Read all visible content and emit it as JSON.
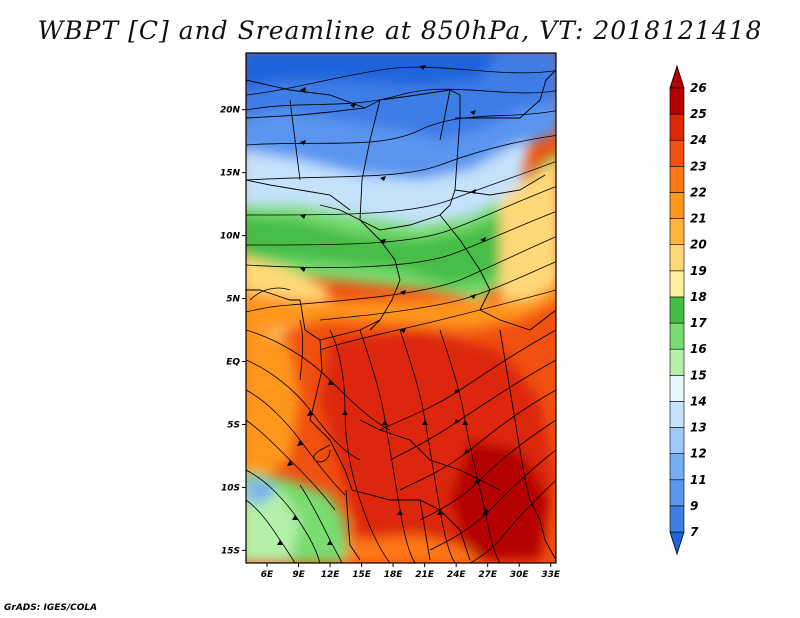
{
  "title": "WBPT [C] and Sreamline at 850hPa, VT: 2018121418",
  "map": {
    "lat_labels": [
      "20N",
      "15N",
      "10N",
      "5N",
      "EQ",
      "5S",
      "10S",
      "15S"
    ],
    "lat_values": [
      20,
      15,
      10,
      5,
      0,
      -5,
      -10,
      -15
    ],
    "lon_labels": [
      "6E",
      "9E",
      "12E",
      "15E",
      "18E",
      "21E",
      "24E",
      "27E",
      "30E",
      "33E"
    ],
    "lon_values": [
      6,
      9,
      12,
      15,
      18,
      21,
      24,
      27,
      30,
      33
    ],
    "lat_range": [
      -16,
      24.5
    ],
    "lon_range": [
      4,
      33.5
    ]
  },
  "colorbar": {
    "labels": [
      "7",
      "9",
      "11",
      "12",
      "13",
      "14",
      "15",
      "16",
      "17",
      "18",
      "19",
      "20",
      "21",
      "22",
      "23",
      "24",
      "25",
      "26"
    ],
    "colors": [
      "#1e64dc",
      "#3c7de6",
      "#5a96f0",
      "#78aef5",
      "#9ec8fa",
      "#c4e2fc",
      "#e8f8ff",
      "#b4f0aa",
      "#78dc6e",
      "#46be46",
      "#fff0a0",
      "#ffd878",
      "#ffb43c",
      "#ff961e",
      "#ff7814",
      "#f05010",
      "#dc2808",
      "#b40000"
    ]
  },
  "credit": "GrADS: IGES/COLA"
}
